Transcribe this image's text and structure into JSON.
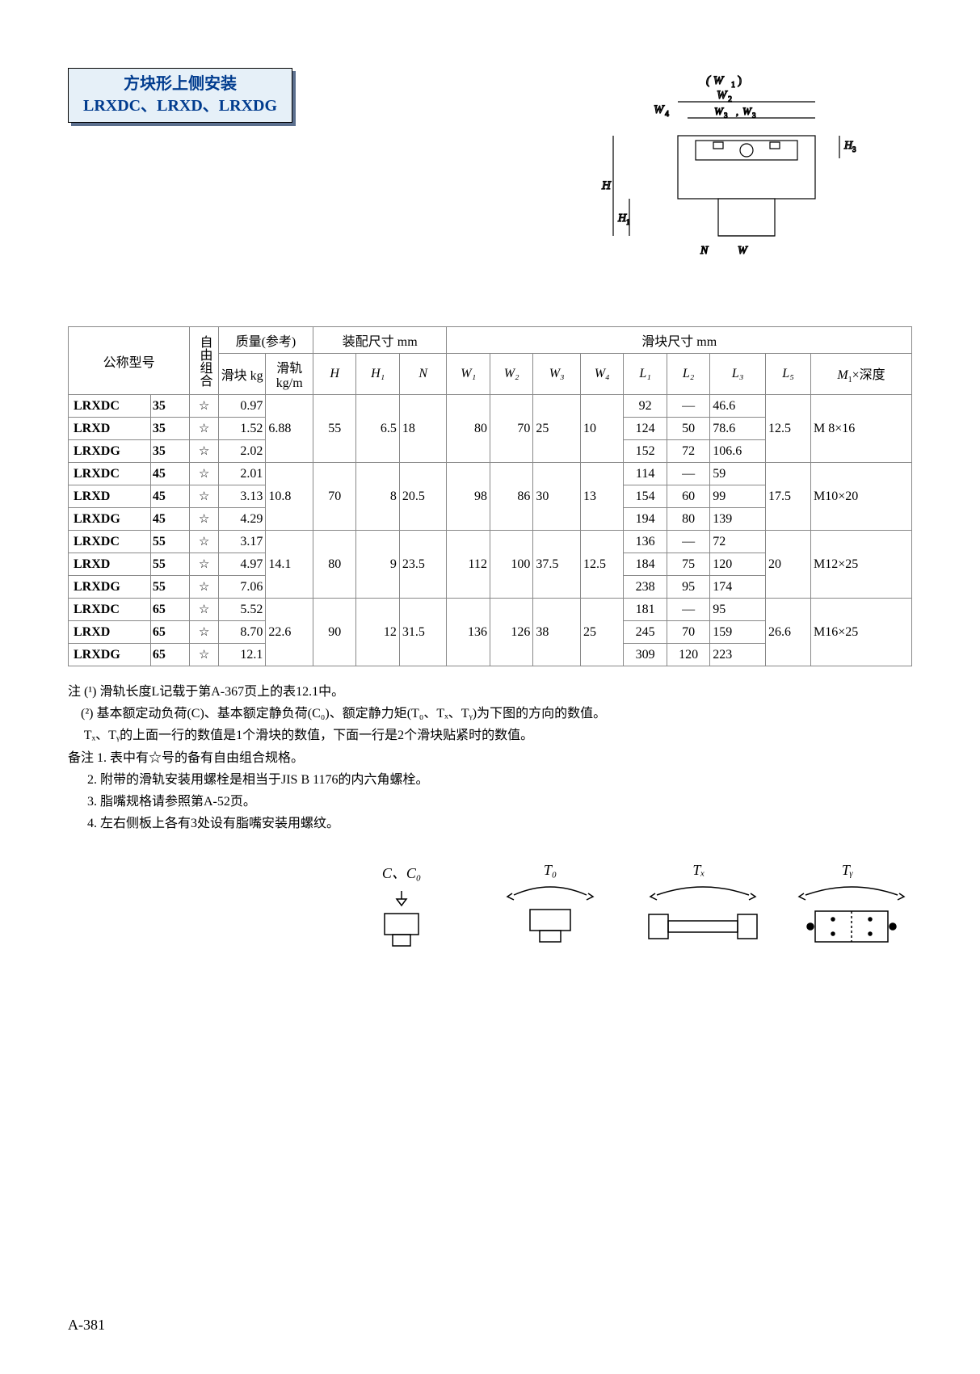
{
  "title_line1": "方块形上侧安装",
  "title_line2": "LRXDC、LRXD、LRXDG",
  "page_number": "A-381",
  "diagram_labels": {
    "W1": "( W₁ )",
    "W2": "W₂",
    "W3": "W₃, W₃",
    "W4": "W₄",
    "H": "H",
    "H1": "H₁",
    "H3": "H₃",
    "N": "N",
    "W": "W"
  },
  "head": {
    "model": "公称型号",
    "freecombo": "自由组合",
    "mass": "质量(参考)",
    "assembly": "装配尺寸\nmm",
    "slider": "滑块尺寸  mm",
    "block": "滑块\nkg",
    "rail": "滑轨\nkg/m",
    "H": "H",
    "H1": "H₁",
    "N": "N",
    "W1": "W₁",
    "W2": "W₂",
    "W3": "W₃",
    "W4": "W₄",
    "L1": "L₁",
    "L2": "L₂",
    "L3": "L₃",
    "L5": "L₅",
    "M1": "M₁×深度"
  },
  "groups": [
    {
      "rail_kgm": "6.88",
      "H": "55",
      "H1": "6.5",
      "N": "18",
      "W1": "80",
      "W2": "70",
      "W3": "25",
      "W4": "10",
      "L5": "12.5",
      "M1": "M  8×16",
      "rows": [
        {
          "model": "LRXDC",
          "size": "35",
          "star": "☆",
          "block": "0.97",
          "L1": "92",
          "L2": "—",
          "L3": "46.6"
        },
        {
          "model": "LRXD",
          "size": "35",
          "star": "☆",
          "block": "1.52",
          "L1": "124",
          "L2": "50",
          "L3": "78.6"
        },
        {
          "model": "LRXDG",
          "size": "35",
          "star": "☆",
          "block": "2.02",
          "L1": "152",
          "L2": "72",
          "L3": "106.6"
        }
      ]
    },
    {
      "rail_kgm": "10.8",
      "H": "70",
      "H1": "8",
      "N": "20.5",
      "W1": "98",
      "W2": "86",
      "W3": "30",
      "W4": "13",
      "L5": "17.5",
      "M1": "M10×20",
      "rows": [
        {
          "model": "LRXDC",
          "size": "45",
          "star": "☆",
          "block": "2.01",
          "L1": "114",
          "L2": "—",
          "L3": "59"
        },
        {
          "model": "LRXD",
          "size": "45",
          "star": "☆",
          "block": "3.13",
          "L1": "154",
          "L2": "60",
          "L3": "99"
        },
        {
          "model": "LRXDG",
          "size": "45",
          "star": "☆",
          "block": "4.29",
          "L1": "194",
          "L2": "80",
          "L3": "139"
        }
      ]
    },
    {
      "rail_kgm": "14.1",
      "H": "80",
      "H1": "9",
      "N": "23.5",
      "W1": "112",
      "W2": "100",
      "W3": "37.5",
      "W4": "12.5",
      "L5": "20",
      "M1": "M12×25",
      "rows": [
        {
          "model": "LRXDC",
          "size": "55",
          "star": "☆",
          "block": "3.17",
          "L1": "136",
          "L2": "—",
          "L3": "72"
        },
        {
          "model": "LRXD",
          "size": "55",
          "star": "☆",
          "block": "4.97",
          "L1": "184",
          "L2": "75",
          "L3": "120"
        },
        {
          "model": "LRXDG",
          "size": "55",
          "star": "☆",
          "block": "7.06",
          "L1": "238",
          "L2": "95",
          "L3": "174"
        }
      ]
    },
    {
      "rail_kgm": "22.6",
      "H": "90",
      "H1": "12",
      "N": "31.5",
      "W1": "136",
      "W2": "126",
      "W3": "38",
      "W4": "25",
      "L5": "26.6",
      "M1": "M16×25",
      "rows": [
        {
          "model": "LRXDC",
          "size": "65",
          "star": "☆",
          "block": "5.52",
          "L1": "181",
          "L2": "—",
          "L3": "95"
        },
        {
          "model": "LRXD",
          "size": "65",
          "star": "☆",
          "block": "8.70",
          "L1": "245",
          "L2": "70",
          "L3": "159"
        },
        {
          "model": "LRXDG",
          "size": "65",
          "star": "☆",
          "block": "12.1",
          "L1": "309",
          "L2": "120",
          "L3": "223"
        }
      ]
    }
  ],
  "colwidths": {
    "model": 80,
    "size": 38,
    "star": 28,
    "block": 46,
    "rail": 46,
    "H": 42,
    "H1": 42,
    "N": 46,
    "W1": 42,
    "W2": 42,
    "W3": 46,
    "W4": 42,
    "L1": 42,
    "L2": 42,
    "L3": 54,
    "L5": 44,
    "M1": 98
  },
  "colors": {
    "border": "#888888",
    "header_text": "#003b8e",
    "header_bg": "#e6f0f8",
    "header_shadow": "#5b6f8e"
  },
  "notes": [
    {
      "label": "注 (¹)",
      "text": "滑轨长度L记载于第A-367页上的表12.1中。"
    },
    {
      "label": "(²)",
      "text": "基本额定动负荷(C)、基本额定静负荷(C₀)、额定静力矩(T₀、Tₓ、Tᵧ)为下图的方向的数值。"
    },
    {
      "label": "",
      "text": "Tₓ、Tᵧ的上面一行的数值是1个滑块的数值，下面一行是2个滑块贴紧时的数值。"
    },
    {
      "label": "备注 1.",
      "text": "表中有☆号的备有自由组合规格。"
    },
    {
      "label": "2.",
      "text": "附带的滑轨安装用螺栓是相当于JIS B 1176的内六角螺栓。"
    },
    {
      "label": "3.",
      "text": "脂嘴规格请参照第A-52页。"
    },
    {
      "label": "4.",
      "text": "左右侧板上各有3处设有脂嘴安装用螺纹。"
    }
  ],
  "footer_labels": [
    "C、C₀",
    "T₀",
    "Tₓ",
    "Tᵧ"
  ]
}
